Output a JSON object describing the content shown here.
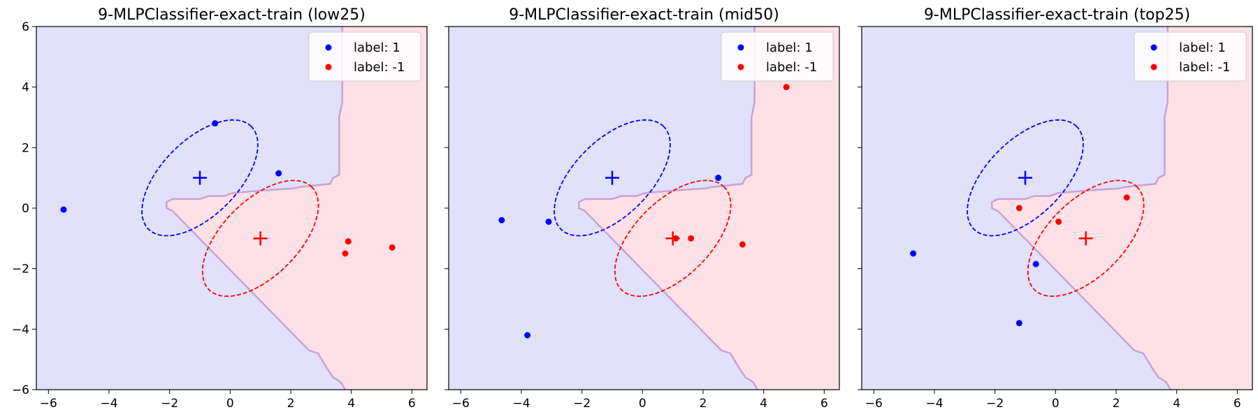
{
  "chart_data": [
    {
      "type": "scatter",
      "title": "9-MLPClassifier-exact-train (low25)",
      "xlim": [
        -6.4,
        6.5
      ],
      "ylim": [
        -6,
        6
      ],
      "xticks": [
        "−6",
        "−4",
        "−2",
        "0",
        "2",
        "4",
        "6"
      ],
      "yticks": [
        "−6",
        "−4",
        "−2",
        "0",
        "2",
        "4",
        "6"
      ],
      "legend_placement": "top-right",
      "series": [
        {
          "name": "label: 1",
          "color": "#0000ff",
          "points": [
            [
              -0.5,
              2.8
            ],
            [
              1.6,
              1.15
            ],
            [
              -5.5,
              -0.05
            ]
          ]
        },
        {
          "name": "label: -1",
          "color": "#ff0000",
          "points": [
            [
              3.9,
              -1.1
            ],
            [
              3.8,
              -1.5
            ],
            [
              5.35,
              -1.3
            ]
          ]
        }
      ],
      "centers": [
        {
          "x": -1,
          "y": 1,
          "color": "#0000ff"
        },
        {
          "x": 1,
          "y": -1,
          "color": "#ff0000"
        }
      ]
    },
    {
      "type": "scatter",
      "title": "9-MLPClassifier-exact-train (mid50)",
      "xlim": [
        -6.4,
        6.5
      ],
      "ylim": [
        -6,
        6
      ],
      "xticks": [
        "−6",
        "−4",
        "−2",
        "0",
        "2",
        "4",
        "6"
      ],
      "yticks": [],
      "legend_placement": "top-right",
      "series": [
        {
          "name": "label: 1",
          "color": "#0000ff",
          "points": [
            [
              -4.65,
              -0.4
            ],
            [
              -3.1,
              -0.45
            ],
            [
              2.5,
              1.0
            ],
            [
              -3.8,
              -4.2
            ]
          ]
        },
        {
          "name": "label: -1",
          "color": "#ff0000",
          "points": [
            [
              4.75,
              4.0
            ],
            [
              1.6,
              -1.0
            ],
            [
              3.3,
              -1.2
            ],
            [
              1.1,
              -1.0
            ]
          ]
        }
      ],
      "centers": [
        {
          "x": -1,
          "y": 1,
          "color": "#0000ff"
        },
        {
          "x": 1,
          "y": -1,
          "color": "#ff0000"
        }
      ]
    },
    {
      "type": "scatter",
      "title": "9-MLPClassifier-exact-train (top25)",
      "xlim": [
        -6.4,
        6.5
      ],
      "ylim": [
        -6,
        6
      ],
      "xticks": [
        "−6",
        "−4",
        "−2",
        "0",
        "2",
        "4",
        "6"
      ],
      "yticks": [],
      "legend_placement": "top-right",
      "series": [
        {
          "name": "label: 1",
          "color": "#0000ff",
          "points": [
            [
              -4.7,
              -1.5
            ],
            [
              -0.65,
              -1.85
            ],
            [
              -1.2,
              -3.8
            ]
          ]
        },
        {
          "name": "label: -1",
          "color": "#ff0000",
          "points": [
            [
              -1.2,
              0.0
            ],
            [
              0.1,
              -0.45
            ],
            [
              2.35,
              0.35
            ]
          ]
        }
      ],
      "centers": [
        {
          "x": -1,
          "y": 1,
          "color": "#0000ff"
        },
        {
          "x": 1,
          "y": -1,
          "color": "#ff0000"
        }
      ]
    }
  ],
  "colors": {
    "class_pos_region": "#e1e1fb",
    "class_neg_region": "#fde1e6",
    "boundary": "#c9a2d8"
  },
  "decision_boundary": [
    [
      6.5,
      6
    ],
    [
      3.7,
      6
    ],
    [
      3.7,
      3.5
    ],
    [
      3.6,
      3.0
    ],
    [
      3.6,
      1.1
    ],
    [
      3.4,
      1.0
    ],
    [
      3.3,
      0.8
    ],
    [
      2.3,
      0.7
    ],
    [
      2.1,
      0.65
    ],
    [
      1.3,
      0.6
    ],
    [
      0.1,
      0.5
    ],
    [
      -0.2,
      0.4
    ],
    [
      -0.7,
      0.4
    ],
    [
      -1.0,
      0.3
    ],
    [
      -1.9,
      0.3
    ],
    [
      -2.1,
      0.2
    ],
    [
      -2.1,
      0.0
    ],
    [
      -1.9,
      -0.1
    ],
    [
      2.6,
      -4.7
    ],
    [
      2.9,
      -4.8
    ],
    [
      3.2,
      -5.3
    ],
    [
      3.4,
      -5.6
    ],
    [
      3.5,
      -5.65
    ],
    [
      3.65,
      -5.75
    ],
    [
      3.8,
      -6
    ],
    [
      6.5,
      -6
    ]
  ],
  "ellipses": [
    {
      "cx": -1,
      "cy": 1,
      "rx": 2.4,
      "ry": 1.25,
      "angle": 45,
      "color": "#0000ff"
    },
    {
      "cx": 1,
      "cy": -1,
      "rx": 2.4,
      "ry": 1.25,
      "angle": 45,
      "color": "#ff0000"
    }
  ]
}
